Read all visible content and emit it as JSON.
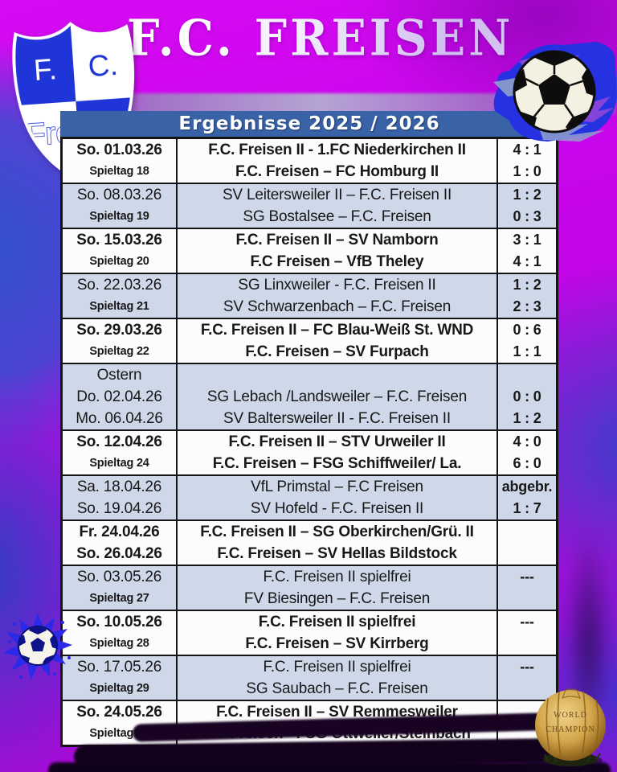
{
  "header": {
    "title": "F.C. FREISEN",
    "subtitle": "Ergebnisse 2025 / 2026",
    "logo": {
      "initial_left": "F.",
      "initial_right": "C.",
      "club_name": "Freisen"
    }
  },
  "colors": {
    "background_purple": "#c706ea",
    "smoke_blue": "#2d54cd",
    "accent_bar": "#3a63a7",
    "row_shaded": "#cfd8e9",
    "row_plain": "#fcfcfd",
    "table_text": "#181818"
  },
  "decor": {
    "top_ball": "soccer-ball with blue paint splash",
    "bottom_left_ball": "small soccer-ball with blue paint splash",
    "vintage_ball_caption_line1": "WORLD",
    "vintage_ball_caption_line2": "CHAMPION"
  },
  "results": {
    "rows": [
      {
        "shaded": false,
        "bold": true,
        "lines": [
          {
            "date": "So. 01.03.26",
            "fixture": "F.C. Freisen II - 1.FC Niederkirchen II",
            "score": "4 : 1",
            "small": false
          },
          {
            "date": "Spieltag 18",
            "fixture": "F.C. Freisen – FC Homburg II",
            "score": "1 : 0",
            "small": true
          }
        ]
      },
      {
        "shaded": true,
        "bold": false,
        "lines": [
          {
            "date": "So. 08.03.26",
            "fixture": "SV Leitersweiler II – F.C. Freisen II",
            "score": "1 : 2",
            "small": false
          },
          {
            "date": "Spieltag 19",
            "fixture": "SG Bostalsee – F.C. Freisen",
            "score": "0 : 3",
            "small": true
          }
        ]
      },
      {
        "shaded": false,
        "bold": true,
        "lines": [
          {
            "date": "So. 15.03.26",
            "fixture": "F.C. Freisen II – SV Namborn",
            "score": "3 : 1",
            "small": false
          },
          {
            "date": "Spieltag 20",
            "fixture": "F.C Freisen – VfB Theley",
            "score": "4 : 1",
            "small": true
          }
        ]
      },
      {
        "shaded": true,
        "bold": false,
        "lines": [
          {
            "date": "So. 22.03.26",
            "fixture": "SG Linxweiler - F.C. Freisen II",
            "score": "1 : 2",
            "small": false
          },
          {
            "date": "Spieltag 21",
            "fixture": "SV Schwarzenbach – F.C. Freisen",
            "score": "2 : 3",
            "small": true
          }
        ]
      },
      {
        "shaded": false,
        "bold": true,
        "lines": [
          {
            "date": "So. 29.03.26",
            "fixture": "F.C. Freisen II – FC Blau-Weiß St. WND",
            "score": "0 : 6",
            "small": false
          },
          {
            "date": "Spieltag 22",
            "fixture": "F.C. Freisen – SV Furpach",
            "score": "1 : 1",
            "small": true
          }
        ]
      },
      {
        "shaded": true,
        "bold": false,
        "lines": [
          {
            "date": "Ostern",
            "fixture": "",
            "score": "",
            "small": false
          },
          {
            "date": "Do. 02.04.26",
            "fixture": "SG Lebach /Landsweiler – F.C. Freisen",
            "score": "0 : 0",
            "small": false
          },
          {
            "date": "Mo. 06.04.26",
            "fixture": "SV Baltersweiler II - F.C. Freisen II",
            "score": "1 : 2",
            "small": false
          }
        ]
      },
      {
        "shaded": false,
        "bold": true,
        "lines": [
          {
            "date": "So. 12.04.26",
            "fixture": "F.C. Freisen II – STV Urweiler II",
            "score": "4 : 0",
            "small": false
          },
          {
            "date": "Spieltag 24",
            "fixture": "F.C. Freisen – FSG Schiffweiler/ La.",
            "score": "6 : 0",
            "small": true
          }
        ]
      },
      {
        "shaded": true,
        "bold": false,
        "lines": [
          {
            "date": "Sa. 18.04.26",
            "fixture": "VfL Primstal – F.C Freisen",
            "score": "abgebr.",
            "small": false
          },
          {
            "date": "So. 19.04.26",
            "fixture": "SV Hofeld - F.C. Freisen II",
            "score": "1 : 7",
            "small": false
          }
        ]
      },
      {
        "shaded": false,
        "bold": true,
        "lines": [
          {
            "date": "Fr. 24.04.26",
            "fixture": "F.C. Freisen II – SG Oberkirchen/Grü. II",
            "score": "",
            "small": false
          },
          {
            "date": "So. 26.04.26",
            "fixture": "F.C. Freisen – SV Hellas Bildstock",
            "score": "",
            "small": false
          }
        ]
      },
      {
        "shaded": true,
        "bold": false,
        "lines": [
          {
            "date": "So. 03.05.26",
            "fixture": "F.C. Freisen II spielfrei",
            "score": "---",
            "small": false
          },
          {
            "date": "Spieltag 27",
            "fixture": "FV Biesingen – F.C. Freisen",
            "score": "",
            "small": true
          }
        ]
      },
      {
        "shaded": false,
        "bold": true,
        "lines": [
          {
            "date": "So. 10.05.26",
            "fixture": "F.C. Freisen II spielfrei",
            "score": "---",
            "small": false
          },
          {
            "date": "Spieltag 28",
            "fixture": "F.C. Freisen – SV Kirrberg",
            "score": "",
            "small": true
          }
        ]
      },
      {
        "shaded": true,
        "bold": false,
        "lines": [
          {
            "date": "So. 17.05.26",
            "fixture": "F.C. Freisen II spielfrei",
            "score": "---",
            "small": false
          },
          {
            "date": "Spieltag 29",
            "fixture": "SG Saubach – F.C. Freisen",
            "score": "",
            "small": true
          }
        ]
      },
      {
        "shaded": false,
        "bold": true,
        "lines": [
          {
            "date": "So. 24.05.26",
            "fixture": "F.C. Freisen II – SV Remmesweiler",
            "score": "",
            "small": false
          },
          {
            "date": "Spieltag 30",
            "fixture": "F.C Freisen - FSG Ottweiler/Steinbach",
            "score": "",
            "small": true
          }
        ]
      }
    ]
  }
}
